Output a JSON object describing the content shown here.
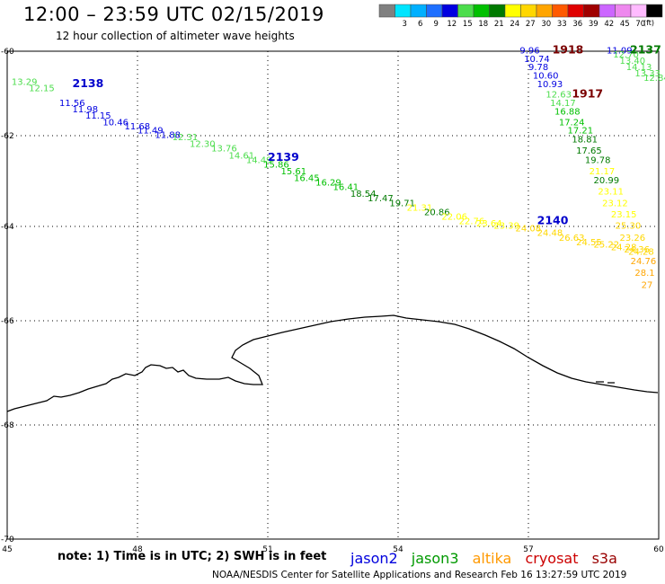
{
  "header": {
    "title": "12:00 – 23:59 UTC 02/15/2019",
    "subtitle": "12 hour collection of altimeter wave heights"
  },
  "colorbar": {
    "unit": "(ft)",
    "bins": [
      {
        "color": "#808080",
        "label": ""
      },
      {
        "color": "#00e5ff",
        "label": "3"
      },
      {
        "color": "#00b0ff",
        "label": "6"
      },
      {
        "color": "#1e6fff",
        "label": "9"
      },
      {
        "color": "#0000e0",
        "label": "12"
      },
      {
        "color": "#4cdd4c",
        "label": "15"
      },
      {
        "color": "#00c000",
        "label": "18"
      },
      {
        "color": "#007a00",
        "label": "21"
      },
      {
        "color": "#ffff00",
        "label": "24"
      },
      {
        "color": "#ffd700",
        "label": "27"
      },
      {
        "color": "#ffa500",
        "label": "30"
      },
      {
        "color": "#ff5a00",
        "label": "33"
      },
      {
        "color": "#e00000",
        "label": "36"
      },
      {
        "color": "#a00000",
        "label": "39"
      },
      {
        "color": "#cc66ff",
        "label": "42"
      },
      {
        "color": "#ee88ee",
        "label": "45"
      },
      {
        "color": "#ffbbff",
        "label": "70"
      },
      {
        "color": "#000000",
        "label": ""
      }
    ]
  },
  "map": {
    "lon_min": 45,
    "lon_max": 60,
    "lat_min": -70,
    "lat_max": -60,
    "lon_ticks": [
      "45",
      "48",
      "51",
      "54",
      "57",
      "60"
    ],
    "lat_ticks": [
      "-60",
      "-62",
      "-64",
      "-66",
      "-68",
      "-70"
    ]
  },
  "orbits": [
    {
      "id": "2138",
      "color": "#0000cc"
    },
    {
      "id": "2139",
      "color": "#0000cc"
    },
    {
      "id": "2140",
      "color": "#0000cc"
    },
    {
      "id": "1918",
      "color": "#7a0000"
    },
    {
      "id": "1917",
      "color": "#7a0000"
    },
    {
      "id": "2137",
      "color": "#007a00"
    }
  ],
  "tracks": [
    {
      "name": "track-2138-2140",
      "points": [
        {
          "lon": 45.1,
          "lat": -60.8,
          "value": "13.29",
          "color": "#4cdd4c"
        },
        {
          "lon": 45.5,
          "lat": -60.95,
          "value": "12.15",
          "color": "#4cdd4c"
        },
        {
          "lon": 46.2,
          "lat": -61.3,
          "value": "11.56",
          "color": "#0000e0"
        },
        {
          "lon": 46.5,
          "lat": -61.45,
          "value": "11.98",
          "color": "#0000e0"
        },
        {
          "lon": 46.8,
          "lat": -61.6,
          "value": "11.15",
          "color": "#0000e0"
        },
        {
          "lon": 47.2,
          "lat": -61.75,
          "value": "10.46",
          "color": "#0000e0"
        },
        {
          "lon": 47.7,
          "lat": -61.85,
          "value": "11.68",
          "color": "#0000e0"
        },
        {
          "lon": 48.0,
          "lat": -61.95,
          "value": "11.49",
          "color": "#0000e0"
        },
        {
          "lon": 48.4,
          "lat": -62.05,
          "value": "11.88",
          "color": "#0000e0"
        },
        {
          "lon": 48.8,
          "lat": -62.1,
          "value": "12.31",
          "color": "#4cdd4c"
        },
        {
          "lon": 49.2,
          "lat": -62.25,
          "value": "12.30",
          "color": "#4cdd4c"
        },
        {
          "lon": 49.7,
          "lat": -62.35,
          "value": "13.76",
          "color": "#4cdd4c"
        },
        {
          "lon": 50.1,
          "lat": -62.5,
          "value": "14.61",
          "color": "#4cdd4c"
        },
        {
          "lon": 50.5,
          "lat": -62.6,
          "value": "14.49",
          "color": "#4cdd4c"
        },
        {
          "lon": 50.9,
          "lat": -62.7,
          "value": "15.86",
          "color": "#00c000"
        },
        {
          "lon": 51.3,
          "lat": -62.85,
          "value": "15.61",
          "color": "#00c000"
        },
        {
          "lon": 51.6,
          "lat": -63.0,
          "value": "16.45",
          "color": "#00c000"
        },
        {
          "lon": 52.1,
          "lat": -63.1,
          "value": "16.29",
          "color": "#00c000"
        },
        {
          "lon": 52.5,
          "lat": -63.2,
          "value": "16.41",
          "color": "#00c000"
        },
        {
          "lon": 52.9,
          "lat": -63.35,
          "value": "18.54",
          "color": "#007a00"
        },
        {
          "lon": 53.3,
          "lat": -63.45,
          "value": "17.47",
          "color": "#007a00"
        },
        {
          "lon": 53.8,
          "lat": -63.55,
          "value": "19.71",
          "color": "#007a00"
        },
        {
          "lon": 54.2,
          "lat": -63.65,
          "value": "21.31",
          "color": "#ffff00"
        },
        {
          "lon": 54.6,
          "lat": -63.75,
          "value": "20.86",
          "color": "#007a00"
        },
        {
          "lon": 55.0,
          "lat": -63.85,
          "value": "22.06",
          "color": "#ffff00"
        },
        {
          "lon": 55.4,
          "lat": -63.95,
          "value": "22.76",
          "color": "#ffff00"
        },
        {
          "lon": 55.8,
          "lat": -64.0,
          "value": "23.64",
          "color": "#ffff00"
        },
        {
          "lon": 56.2,
          "lat": -64.05,
          "value": "23.39",
          "color": "#ffff00"
        },
        {
          "lon": 56.7,
          "lat": -64.1,
          "value": "24.08",
          "color": "#ffd700"
        },
        {
          "lon": 57.2,
          "lat": -64.2,
          "value": "24.48",
          "color": "#ffd700"
        },
        {
          "lon": 57.7,
          "lat": -64.3,
          "value": "26.63",
          "color": "#ffd700"
        },
        {
          "lon": 58.1,
          "lat": -64.4,
          "value": "24.55",
          "color": "#ffd700"
        },
        {
          "lon": 58.5,
          "lat": -64.45,
          "value": "25.22",
          "color": "#ffd700"
        },
        {
          "lon": 58.9,
          "lat": -64.5,
          "value": "24.28",
          "color": "#ffd700"
        },
        {
          "lon": 59.3,
          "lat": -64.6,
          "value": "24.28",
          "color": "#ffd700"
        }
      ]
    },
    {
      "name": "track-1918-1917",
      "points": [
        {
          "lon": 56.8,
          "lat": -60.05,
          "value": "9.96",
          "color": "#0000e0"
        },
        {
          "lon": 56.9,
          "lat": -60.25,
          "value": "10.74",
          "color": "#0000e0"
        },
        {
          "lon": 57.0,
          "lat": -60.45,
          "value": "9.78",
          "color": "#0000e0"
        },
        {
          "lon": 57.1,
          "lat": -60.65,
          "value": "10.60",
          "color": "#0000e0"
        },
        {
          "lon": 57.2,
          "lat": -60.85,
          "value": "10.93",
          "color": "#0000e0"
        },
        {
          "lon": 57.4,
          "lat": -61.1,
          "value": "12.63",
          "color": "#4cdd4c"
        },
        {
          "lon": 57.5,
          "lat": -61.3,
          "value": "14.17",
          "color": "#4cdd4c"
        },
        {
          "lon": 57.6,
          "lat": -61.5,
          "value": "16.88",
          "color": "#00c000"
        },
        {
          "lon": 57.7,
          "lat": -61.75,
          "value": "17.24",
          "color": "#00c000"
        },
        {
          "lon": 57.9,
          "lat": -61.95,
          "value": "17.21",
          "color": "#00c000"
        },
        {
          "lon": 58.0,
          "lat": -62.15,
          "value": "18.81",
          "color": "#007a00"
        },
        {
          "lon": 58.1,
          "lat": -62.4,
          "value": "17.65",
          "color": "#007a00"
        },
        {
          "lon": 58.3,
          "lat": -62.6,
          "value": "19.78",
          "color": "#007a00"
        },
        {
          "lon": 58.4,
          "lat": -62.85,
          "value": "21.17",
          "color": "#ffff00"
        },
        {
          "lon": 58.5,
          "lat": -63.05,
          "value": "20.99",
          "color": "#007a00"
        },
        {
          "lon": 58.6,
          "lat": -63.3,
          "value": "23.11",
          "color": "#ffff00"
        },
        {
          "lon": 58.7,
          "lat": -63.55,
          "value": "23.12",
          "color": "#ffff00"
        },
        {
          "lon": 58.9,
          "lat": -63.8,
          "value": "23.15",
          "color": "#ffff00"
        },
        {
          "lon": 59.0,
          "lat": -64.05,
          "value": "25.30",
          "color": "#ffd700"
        },
        {
          "lon": 59.1,
          "lat": -64.3,
          "value": "23.26",
          "color": "#ffd700"
        },
        {
          "lon": 59.2,
          "lat": -64.55,
          "value": "24.36",
          "color": "#ffd700"
        },
        {
          "lon": 59.35,
          "lat": -64.8,
          "value": "24.76",
          "color": "#ffa500"
        },
        {
          "lon": 59.45,
          "lat": -65.05,
          "value": "28.1",
          "color": "#ffa500"
        },
        {
          "lon": 59.6,
          "lat": -65.3,
          "value": "27",
          "color": "#ffa500"
        }
      ]
    },
    {
      "name": "track-2137",
      "points": [
        {
          "lon": 58.8,
          "lat": -60.05,
          "value": "11.09",
          "color": "#0000e0"
        },
        {
          "lon": 58.95,
          "lat": -60.15,
          "value": "12.70",
          "color": "#4cdd4c"
        },
        {
          "lon": 59.1,
          "lat": -60.3,
          "value": "13.40",
          "color": "#4cdd4c"
        },
        {
          "lon": 59.25,
          "lat": -60.45,
          "value": "14.13",
          "color": "#4cdd4c"
        },
        {
          "lon": 59.45,
          "lat": -60.6,
          "value": "13.33",
          "color": "#4cdd4c"
        },
        {
          "lon": 59.65,
          "lat": -60.7,
          "value": "12.84",
          "color": "#4cdd4c"
        }
      ]
    }
  ],
  "note": "note:  1) Time is in UTC;  2) SWH is in feet",
  "legend": [
    {
      "label": "jason2",
      "color": "#0000dd"
    },
    {
      "label": "jason3",
      "color": "#009900"
    },
    {
      "label": "altika",
      "color": "#ff9900"
    },
    {
      "label": "cryosat",
      "color": "#cc0000"
    },
    {
      "label": "s3a",
      "color": "#990000"
    }
  ],
  "footer": "NOAA/NESDIS Center for Satellite Applications and Research     Feb 16 13:27:59 UTC 2019"
}
